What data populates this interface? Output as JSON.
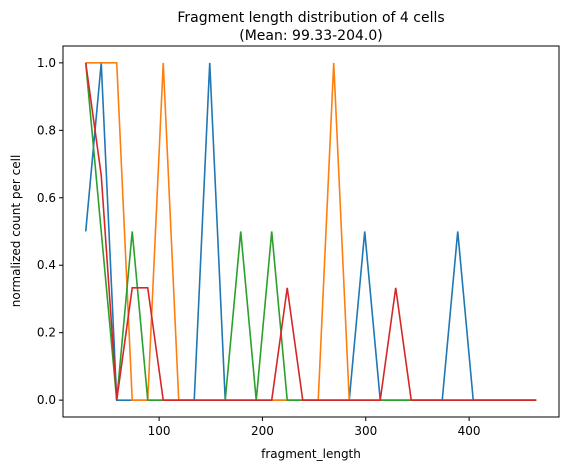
{
  "chart_data": {
    "type": "line",
    "title": "Fragment length distribution of 4 cells",
    "subtitle": "(Mean: 99.33-204.0)",
    "xlabel": "fragment_length",
    "ylabel": "normalized count per cell",
    "xlim": [
      7,
      487
    ],
    "ylim": [
      -0.05,
      1.05
    ],
    "xticks": [
      100,
      200,
      300,
      400
    ],
    "yticks": [
      0.0,
      0.2,
      0.4,
      0.6,
      0.8,
      1.0
    ],
    "xtick_labels": [
      "100",
      "200",
      "300",
      "400"
    ],
    "ytick_labels": [
      "0.0",
      "0.2",
      "0.4",
      "0.6",
      "0.8",
      "1.0"
    ],
    "grid": false,
    "legend": "none",
    "series": [
      {
        "color": "#1f77b4",
        "points": [
          [
            29,
            0.5
          ],
          [
            44,
            1.0
          ],
          [
            59,
            0.0
          ],
          [
            134,
            0.0
          ],
          [
            149,
            1.0
          ],
          [
            164,
            0.0
          ],
          [
            284,
            0.0
          ],
          [
            299,
            0.5
          ],
          [
            314,
            0.0
          ],
          [
            374,
            0.0
          ],
          [
            389,
            0.5
          ],
          [
            404,
            0.0
          ],
          [
            465,
            0.0
          ]
        ]
      },
      {
        "color": "#ff7f0e",
        "points": [
          [
            29,
            1.0
          ],
          [
            59,
            1.0
          ],
          [
            74,
            0.0
          ],
          [
            89,
            0.0
          ],
          [
            104,
            1.0
          ],
          [
            119,
            0.0
          ],
          [
            254,
            0.0
          ],
          [
            269,
            1.0
          ],
          [
            284,
            0.0
          ],
          [
            465,
            0.0
          ]
        ]
      },
      {
        "color": "#2ca02c",
        "points": [
          [
            29,
            1.0
          ],
          [
            59,
            0.0
          ],
          [
            74,
            0.5
          ],
          [
            89,
            0.0
          ],
          [
            164,
            0.0
          ],
          [
            179,
            0.5
          ],
          [
            194,
            0.0
          ],
          [
            209,
            0.5
          ],
          [
            224,
            0.0
          ],
          [
            465,
            0.0
          ]
        ]
      },
      {
        "color": "#d62728",
        "points": [
          [
            29,
            1.0
          ],
          [
            44,
            0.667
          ],
          [
            59,
            0.0
          ],
          [
            74,
            0.333
          ],
          [
            89,
            0.333
          ],
          [
            104,
            0.0
          ],
          [
            209,
            0.0
          ],
          [
            224,
            0.333
          ],
          [
            239,
            0.0
          ],
          [
            314,
            0.0
          ],
          [
            329,
            0.333
          ],
          [
            344,
            0.0
          ],
          [
            465,
            0.0
          ]
        ]
      }
    ]
  }
}
